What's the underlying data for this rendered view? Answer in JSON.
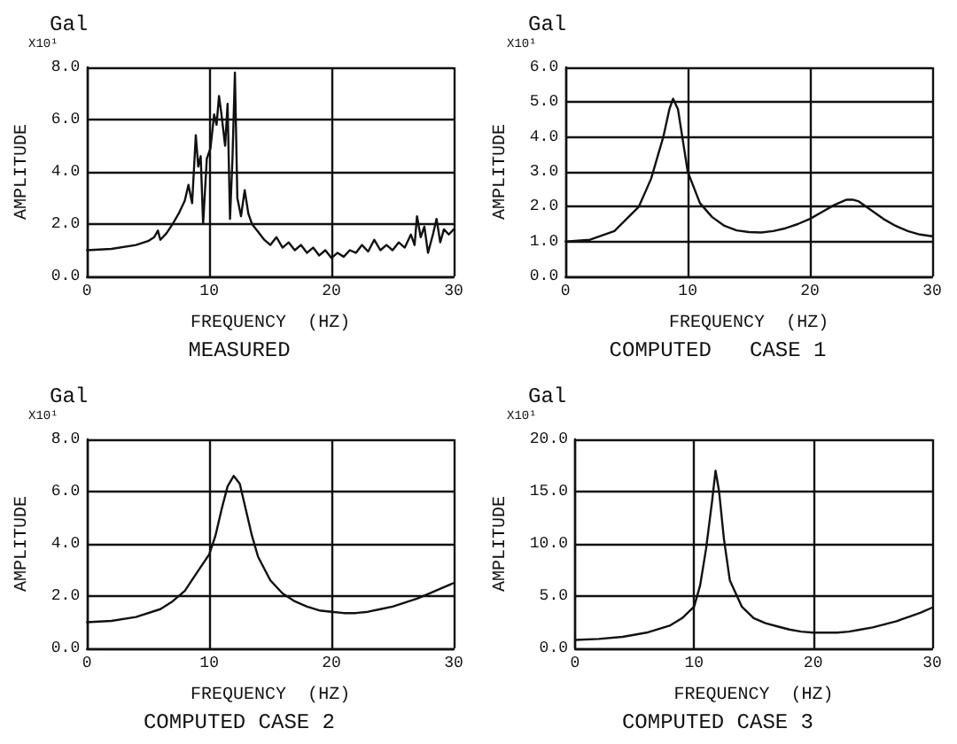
{
  "chart_data": [
    {
      "type": "line",
      "title": "MEASURED",
      "xlabel": "FREQUENCY  (HZ)",
      "ylabel": "AMPLITUDE",
      "annotations": [
        "Gal",
        "X10¹"
      ],
      "grid": true,
      "marker": "none",
      "line_style": "solid",
      "xlim": [
        0,
        30
      ],
      "xticks": [
        0,
        10,
        20,
        30
      ],
      "ylim": [
        0,
        8
      ],
      "yticks": [
        {
          "value": 0,
          "label": "0.0"
        },
        {
          "value": 2,
          "label": "2.0"
        },
        {
          "value": 4,
          "label": "4.0"
        },
        {
          "value": 6,
          "label": "6.0"
        },
        {
          "value": 8,
          "label": "8.0"
        }
      ],
      "x": [
        0,
        2,
        4,
        5,
        5.5,
        5.8,
        6,
        6.5,
        7,
        7.5,
        8,
        8.3,
        8.6,
        8.9,
        9.1,
        9.3,
        9.5,
        9.8,
        10.1,
        10.4,
        10.6,
        10.8,
        11,
        11.3,
        11.5,
        11.7,
        11.9,
        12.1,
        12.3,
        12.6,
        12.9,
        13.2,
        13.5,
        14,
        14.5,
        15,
        15.5,
        16,
        16.5,
        17,
        17.5,
        18,
        18.5,
        19,
        19.5,
        20,
        20.5,
        21,
        21.5,
        22,
        22.5,
        23,
        23.5,
        24,
        24.5,
        25,
        25.5,
        26,
        26.5,
        26.8,
        27,
        27.3,
        27.6,
        27.9,
        28.3,
        28.6,
        28.9,
        29.2,
        29.6,
        30
      ],
      "series": [
        {
          "color": "#111111",
          "values": [
            1.0,
            1.05,
            1.2,
            1.35,
            1.5,
            1.75,
            1.4,
            1.65,
            2.0,
            2.4,
            2.9,
            3.5,
            2.8,
            5.4,
            4.2,
            4.6,
            2.0,
            4.5,
            4.9,
            6.2,
            5.8,
            6.9,
            6.2,
            5.0,
            6.6,
            2.2,
            4.5,
            7.8,
            3.0,
            2.3,
            3.3,
            2.4,
            2.0,
            1.7,
            1.4,
            1.2,
            1.5,
            1.1,
            1.3,
            1.0,
            1.2,
            0.9,
            1.1,
            0.8,
            1.0,
            0.7,
            0.9,
            0.75,
            1.0,
            0.9,
            1.2,
            0.95,
            1.4,
            1.0,
            1.2,
            1.0,
            1.3,
            1.1,
            1.6,
            1.2,
            2.3,
            1.5,
            1.9,
            0.9,
            1.6,
            2.2,
            1.3,
            1.8,
            1.6,
            1.8
          ]
        }
      ]
    },
    {
      "type": "line",
      "title": "COMPUTED   CASE 1",
      "xlabel": "FREQUENCY  (HZ)",
      "ylabel": "AMPLITUDE",
      "annotations": [
        "Gal",
        "X10¹"
      ],
      "grid": true,
      "marker": "none",
      "line_style": "solid",
      "xlim": [
        0,
        30
      ],
      "xticks": [
        0,
        10,
        20,
        30
      ],
      "ylim": [
        0,
        6
      ],
      "yticks": [
        {
          "value": 0,
          "label": "0.0"
        },
        {
          "value": 1,
          "label": "1.0"
        },
        {
          "value": 2,
          "label": "2.0"
        },
        {
          "value": 3,
          "label": "3.0"
        },
        {
          "value": 4,
          "label": "4.0"
        },
        {
          "value": 5,
          "label": "5.0"
        },
        {
          "value": 6,
          "label": "6.0"
        }
      ],
      "x": [
        0,
        2,
        4,
        6,
        7,
        8,
        8.5,
        8.8,
        9.2,
        9.6,
        10,
        11,
        12,
        13,
        14,
        15,
        16,
        17,
        18,
        19,
        20,
        21,
        22,
        23,
        23.5,
        24,
        25,
        26,
        27,
        28,
        29,
        30
      ],
      "series": [
        {
          "color": "#111111",
          "values": [
            1.0,
            1.05,
            1.3,
            2.0,
            2.8,
            4.0,
            4.8,
            5.1,
            4.8,
            3.9,
            3.0,
            2.1,
            1.7,
            1.45,
            1.32,
            1.27,
            1.26,
            1.3,
            1.38,
            1.5,
            1.65,
            1.85,
            2.05,
            2.2,
            2.2,
            2.15,
            1.9,
            1.65,
            1.45,
            1.3,
            1.2,
            1.15
          ]
        }
      ]
    },
    {
      "type": "line",
      "title": "COMPUTED CASE 2",
      "xlabel": "FREQUENCY  (HZ)",
      "ylabel": "AMPLITUDE",
      "annotations": [
        "Gal",
        "X10¹"
      ],
      "grid": true,
      "marker": "none",
      "line_style": "solid",
      "xlim": [
        0,
        30
      ],
      "xticks": [
        0,
        10,
        20,
        30
      ],
      "ylim": [
        0,
        8
      ],
      "yticks": [
        {
          "value": 0,
          "label": "0.0"
        },
        {
          "value": 2,
          "label": "2.0"
        },
        {
          "value": 4,
          "label": "4.0"
        },
        {
          "value": 6,
          "label": "6.0"
        },
        {
          "value": 8,
          "label": "8.0"
        }
      ],
      "x": [
        0,
        2,
        4,
        6,
        7,
        8,
        9,
        10,
        10.5,
        11,
        11.5,
        12,
        12.5,
        13,
        13.5,
        14,
        15,
        16,
        17,
        18,
        19,
        20,
        21,
        22,
        23,
        24,
        25,
        26,
        27,
        28,
        29,
        30
      ],
      "series": [
        {
          "color": "#111111",
          "values": [
            1.0,
            1.05,
            1.2,
            1.5,
            1.8,
            2.2,
            2.9,
            3.6,
            4.3,
            5.3,
            6.2,
            6.6,
            6.3,
            5.3,
            4.3,
            3.5,
            2.6,
            2.1,
            1.8,
            1.6,
            1.45,
            1.4,
            1.35,
            1.35,
            1.4,
            1.5,
            1.6,
            1.75,
            1.9,
            2.1,
            2.3,
            2.5
          ]
        }
      ]
    },
    {
      "type": "line",
      "title": "COMPUTED CASE 3",
      "xlabel": "FREQUENCY  (HZ)",
      "ylabel": "AMPLITUDE",
      "annotations": [
        "Gal",
        "X10¹"
      ],
      "grid": true,
      "marker": "none",
      "line_style": "solid",
      "xlim": [
        0,
        30
      ],
      "xticks": [
        0,
        10,
        20,
        30
      ],
      "ylim": [
        0,
        20
      ],
      "yticks": [
        {
          "value": 0,
          "label": "0.0"
        },
        {
          "value": 5,
          "label": "5.0"
        },
        {
          "value": 10,
          "label": "10.0"
        },
        {
          "value": 15,
          "label": "15.0"
        },
        {
          "value": 20,
          "label": "20.0"
        }
      ],
      "x": [
        0,
        2,
        4,
        6,
        8,
        9,
        10,
        10.5,
        11,
        11.5,
        11.8,
        12.1,
        12.5,
        13,
        14,
        15,
        16,
        17,
        18,
        19,
        20,
        21,
        22,
        23,
        24,
        25,
        26,
        27,
        28,
        29,
        30
      ],
      "series": [
        {
          "color": "#111111",
          "values": [
            0.8,
            0.9,
            1.1,
            1.5,
            2.2,
            2.9,
            4.0,
            6.0,
            9.5,
            14.0,
            17.0,
            15.0,
            10.5,
            6.5,
            4.0,
            2.9,
            2.4,
            2.1,
            1.8,
            1.6,
            1.5,
            1.5,
            1.5,
            1.6,
            1.8,
            2.0,
            2.3,
            2.6,
            3.0,
            3.4,
            3.9
          ]
        }
      ]
    }
  ]
}
